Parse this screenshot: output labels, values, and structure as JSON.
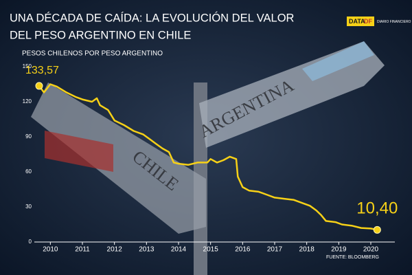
{
  "chart_data": {
    "type": "line",
    "title": [
      "UNA DÉCADA DE CAÍDA: LA EVOLUCIÓN DEL VALOR",
      "DEL PESO ARGENTINO EN CHILE"
    ],
    "subtitle": "PESOS CHILENOS POR PESO ARGENTINO",
    "source": "FUENTE: BLOOMBERG",
    "x": [
      2009.65,
      2009.8,
      2010.0,
      2010.2,
      2010.5,
      2010.8,
      2011.0,
      2011.3,
      2011.45,
      2011.55,
      2011.8,
      2012.0,
      2012.3,
      2012.6,
      2012.9,
      2013.1,
      2013.3,
      2013.5,
      2013.7,
      2013.85,
      2014.0,
      2014.3,
      2014.6,
      2014.9,
      2015.0,
      2015.2,
      2015.4,
      2015.6,
      2015.8,
      2015.85,
      2016.0,
      2016.2,
      2016.5,
      2016.8,
      2017.0,
      2017.3,
      2017.6,
      2017.9,
      2018.1,
      2018.3,
      2018.45,
      2018.6,
      2018.9,
      2019.1,
      2019.4,
      2019.7,
      2020.0,
      2020.2
    ],
    "series": [
      {
        "color": "#f7d117",
        "values": [
          133.57,
          128,
          135,
          133,
          128,
          124,
          122,
          120,
          123,
          117,
          113,
          104,
          100,
          95,
          92,
          88,
          84,
          80,
          77,
          68,
          67,
          66,
          68,
          68,
          71,
          68,
          70,
          73,
          71,
          56,
          47,
          44,
          43,
          40,
          38,
          37,
          36,
          33,
          31,
          27,
          23,
          18,
          17,
          15,
          14,
          12,
          11.5,
          10.4
        ],
        "value_labels": [
          "133,57",
          null,
          null,
          null,
          null,
          null,
          null,
          null,
          null,
          null,
          null,
          null,
          null,
          null,
          null,
          null,
          null,
          null,
          null,
          null,
          null,
          null,
          null,
          null,
          null,
          null,
          null,
          null,
          null,
          null,
          null,
          null,
          null,
          null,
          null,
          null,
          null,
          null,
          null,
          null,
          null,
          null,
          null,
          null,
          null,
          null,
          null,
          "10,40"
        ]
      }
    ],
    "xlim": [
      2009.5,
      2020.75
    ],
    "xticks": [
      2010,
      2011,
      2012,
      2013,
      2014,
      2015,
      2016,
      2017,
      2018,
      2019,
      2020
    ],
    "ylim": [
      0,
      150
    ],
    "yticks": [
      0,
      30,
      60,
      90,
      120,
      150
    ]
  },
  "logo": {
    "brand": "DATA",
    "brand_accent": "DF",
    "caption": "DIARIO FINANCIERO"
  },
  "background": {
    "sign_top": "ARGENTINA",
    "sign_bottom": "CHILE"
  }
}
